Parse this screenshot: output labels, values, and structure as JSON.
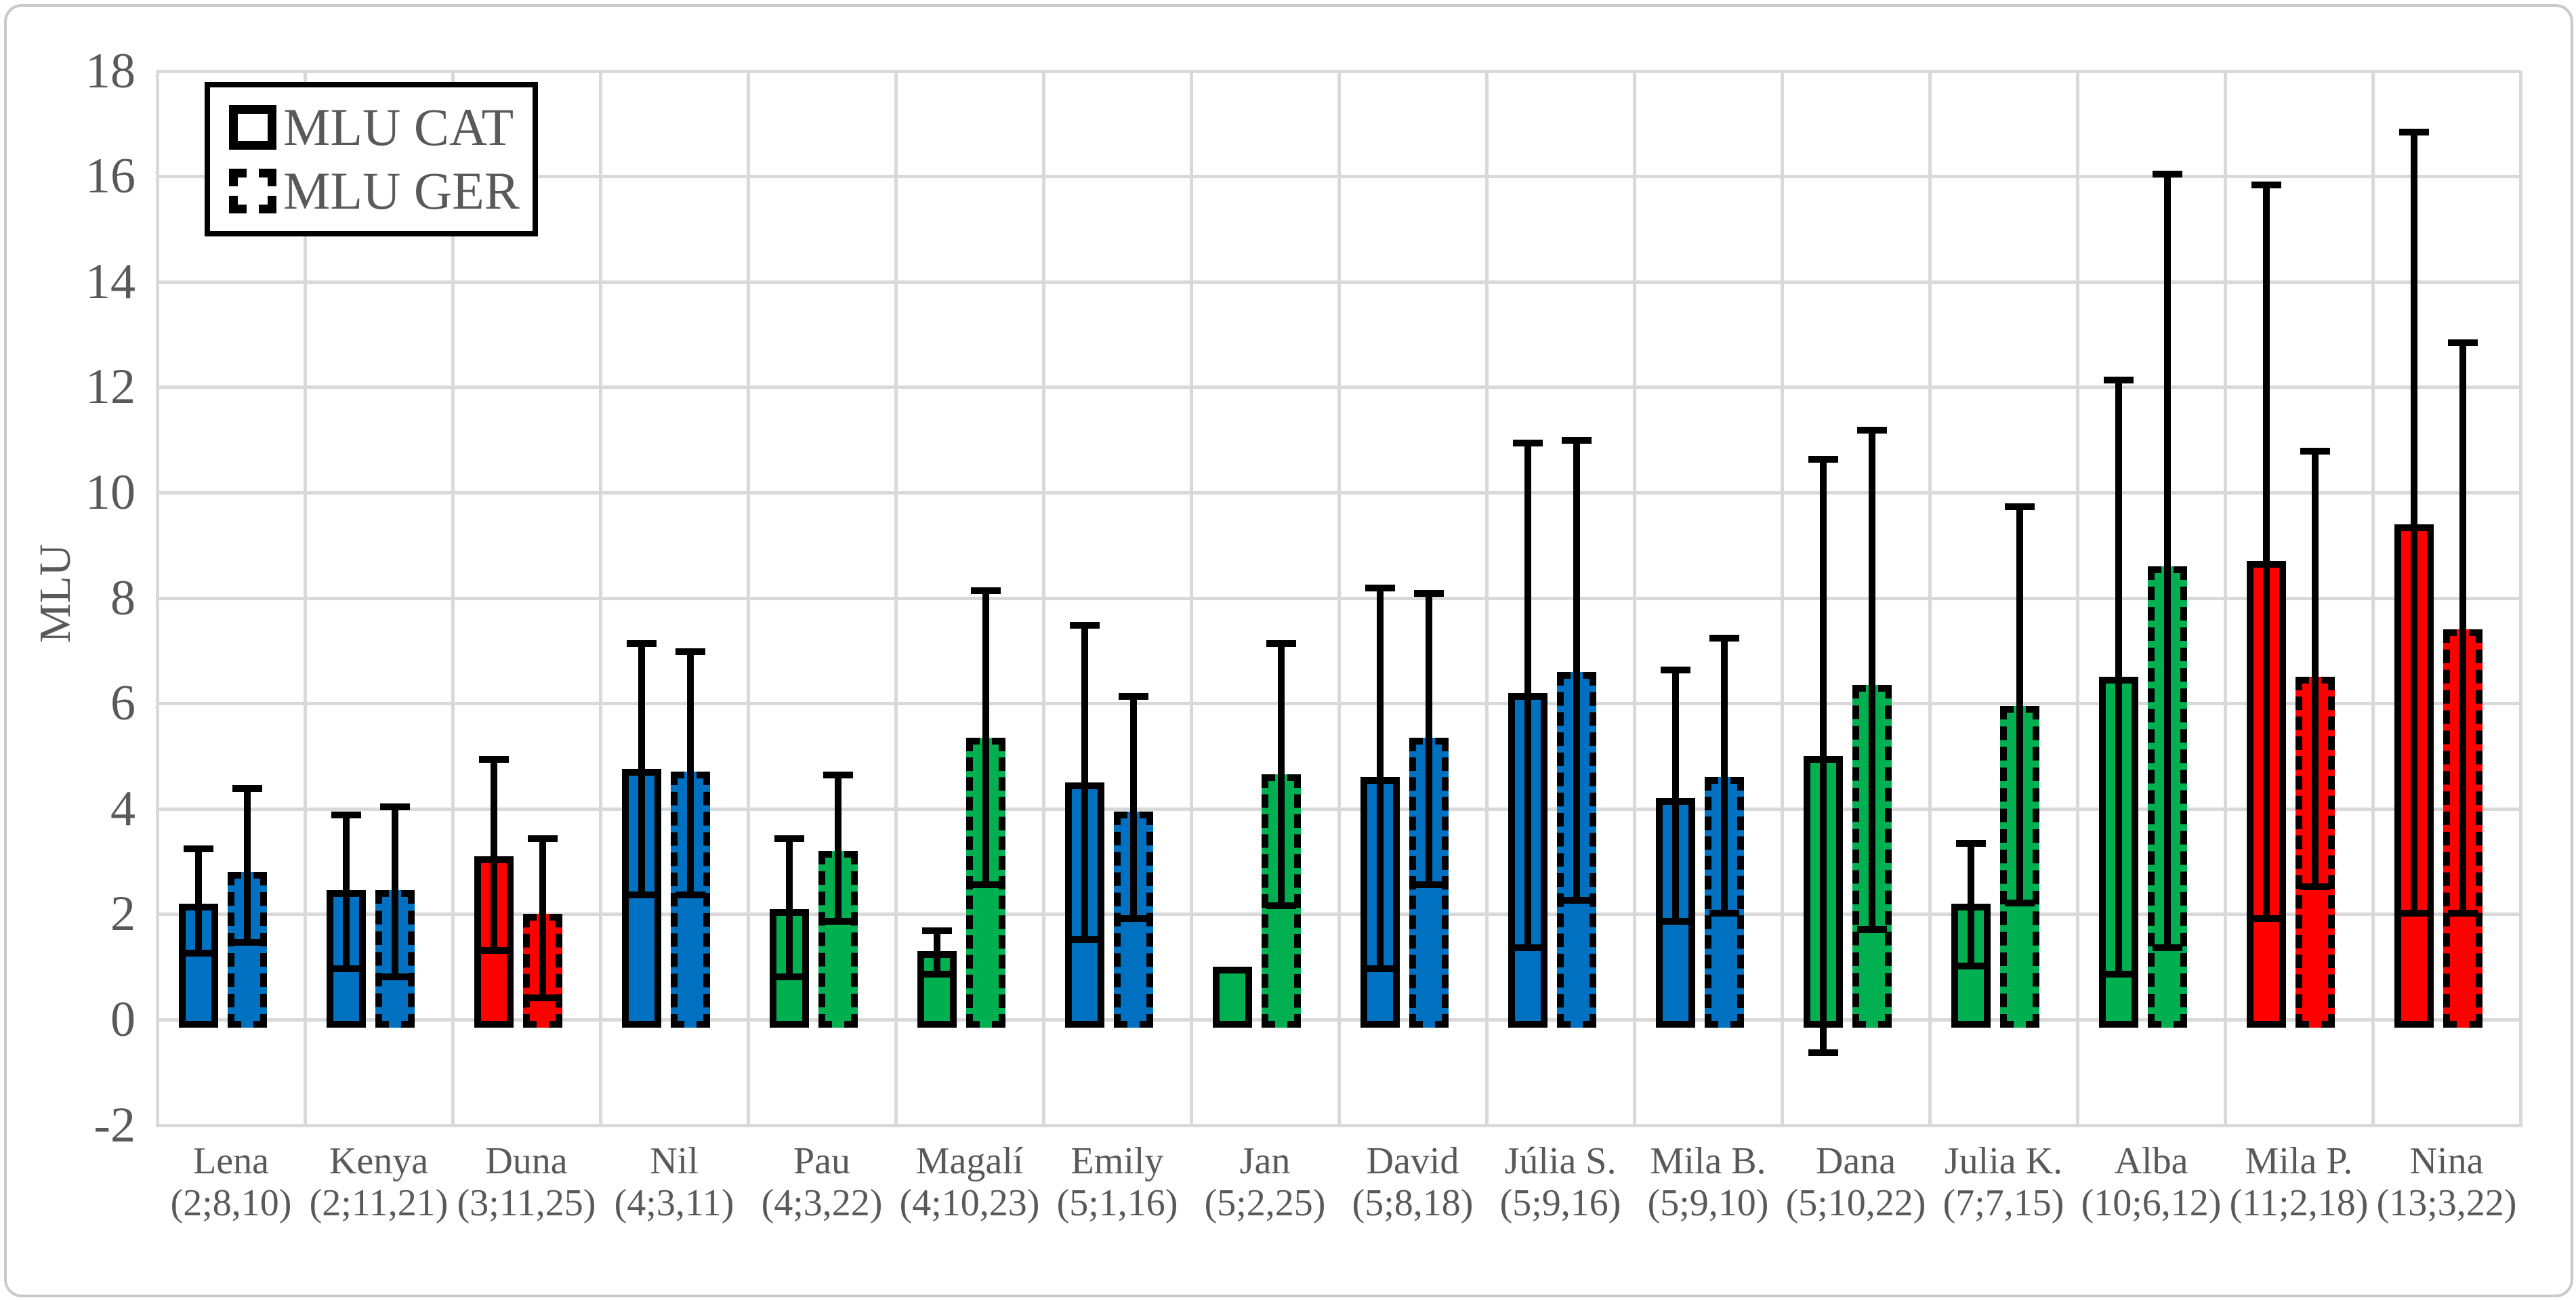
{
  "chart_data": {
    "type": "bar",
    "title": "",
    "xlabel": "",
    "ylabel": "MLU",
    "ylim": [
      -2,
      18
    ],
    "yticks": [
      -2,
      0,
      2,
      4,
      6,
      8,
      10,
      12,
      14,
      16,
      18
    ],
    "grid": "on",
    "legend_position": "top-left",
    "legend": {
      "items": [
        {
          "label": "MLU CAT",
          "border_style": "solid"
        },
        {
          "label": "MLU GER",
          "border_style": "dashed"
        }
      ]
    },
    "series": [
      "MLU CAT",
      "MLU GER"
    ],
    "colors": {
      "blue": "#0070C0",
      "red": "#FF0000",
      "green": "#00B050",
      "bar_border": "#000000",
      "grid_line": "#D9D9D9",
      "axis_text": "#595959",
      "frame": "#C9C9C9"
    },
    "children": [
      {
        "name": "Lena",
        "info": "(2;8,10)",
        "color": "blue",
        "cat": {
          "value": 2.2,
          "whisker_top": 3.3,
          "whisker_bottom": 1.2
        },
        "ger": {
          "value": 2.8,
          "whisker_top": 4.45,
          "whisker_bottom": 1.4
        }
      },
      {
        "name": "Kenya",
        "info": "(2;11,21)",
        "color": "blue",
        "cat": {
          "value": 2.45,
          "whisker_top": 3.95,
          "whisker_bottom": 0.9
        },
        "ger": {
          "value": 2.45,
          "whisker_top": 4.1,
          "whisker_bottom": 0.75
        }
      },
      {
        "name": "Duna",
        "info": "(3;11,25)",
        "color": "red",
        "cat": {
          "value": 3.1,
          "whisker_top": 5.0,
          "whisker_bottom": 1.25
        },
        "ger": {
          "value": 2.0,
          "whisker_top": 3.5,
          "whisker_bottom": 0.35
        }
      },
      {
        "name": "Nil",
        "info": "(4;3,11)",
        "color": "blue",
        "cat": {
          "value": 4.75,
          "whisker_top": 7.2,
          "whisker_bottom": 2.3
        },
        "ger": {
          "value": 4.7,
          "whisker_top": 7.05,
          "whisker_bottom": 2.3
        }
      },
      {
        "name": "Pau",
        "info": "(4;3,22)",
        "color": "green",
        "cat": {
          "value": 2.1,
          "whisker_top": 3.5,
          "whisker_bottom": 0.75
        },
        "ger": {
          "value": 3.2,
          "whisker_top": 4.7,
          "whisker_bottom": 1.8
        }
      },
      {
        "name": "Magalí",
        "info": "(4;10,23)",
        "color": "green",
        "cat": {
          "value": 1.3,
          "whisker_top": 1.75,
          "whisker_bottom": 0.8
        },
        "ger": {
          "value": 5.35,
          "whisker_top": 8.2,
          "whisker_bottom": 2.5
        }
      },
      {
        "name": "Emily",
        "info": "(5;1,16)",
        "color": "blue",
        "cat": {
          "value": 4.5,
          "whisker_top": 7.55,
          "whisker_bottom": 1.45
        },
        "ger": {
          "value": 3.95,
          "whisker_top": 6.2,
          "whisker_bottom": 1.85
        }
      },
      {
        "name": "Jan",
        "info": "(5;2,25)",
        "color": "green",
        "cat": {
          "value": 1.0,
          "whisker_top": null,
          "whisker_bottom": null
        },
        "ger": {
          "value": 4.65,
          "whisker_top": 7.2,
          "whisker_bottom": 2.1
        }
      },
      {
        "name": "David",
        "info": "(5;8,18)",
        "color": "blue",
        "cat": {
          "value": 4.6,
          "whisker_top": 8.25,
          "whisker_bottom": 0.9
        },
        "ger": {
          "value": 5.35,
          "whisker_top": 8.15,
          "whisker_bottom": 2.5
        }
      },
      {
        "name": "Júlia S.",
        "info": "(5;9,16)",
        "color": "blue",
        "cat": {
          "value": 6.2,
          "whisker_top": 11.0,
          "whisker_bottom": 1.3
        },
        "ger": {
          "value": 6.6,
          "whisker_top": 11.05,
          "whisker_bottom": 2.2
        }
      },
      {
        "name": "Mila B.",
        "info": "(5;9,10)",
        "color": "blue",
        "cat": {
          "value": 4.2,
          "whisker_top": 6.7,
          "whisker_bottom": 1.8
        },
        "ger": {
          "value": 4.6,
          "whisker_top": 7.3,
          "whisker_bottom": 1.95
        }
      },
      {
        "name": "Dana",
        "info": "(5;10,22)",
        "color": "green",
        "cat": {
          "value": 5.0,
          "whisker_top": 10.7,
          "whisker_bottom": -0.7
        },
        "ger": {
          "value": 6.35,
          "whisker_top": 11.25,
          "whisker_bottom": 1.65
        }
      },
      {
        "name": "Julia K.",
        "info": "(7;7,15)",
        "color": "green",
        "cat": {
          "value": 2.2,
          "whisker_top": 3.4,
          "whisker_bottom": 0.95
        },
        "ger": {
          "value": 5.95,
          "whisker_top": 9.8,
          "whisker_bottom": 2.15
        }
      },
      {
        "name": "Alba",
        "info": "(10;6,12)",
        "color": "green",
        "cat": {
          "value": 6.5,
          "whisker_top": 12.2,
          "whisker_bottom": 0.8
        },
        "ger": {
          "value": 8.6,
          "whisker_top": 16.1,
          "whisker_bottom": 1.3
        }
      },
      {
        "name": "Mila P.",
        "info": "(11;2,18)",
        "color": "red",
        "cat": {
          "value": 8.7,
          "whisker_top": 15.9,
          "whisker_bottom": 1.85
        },
        "ger": {
          "value": 6.5,
          "whisker_top": 10.85,
          "whisker_bottom": 2.45
        }
      },
      {
        "name": "Nina",
        "info": "(13;3,22)",
        "color": "red",
        "cat": {
          "value": 9.4,
          "whisker_top": 16.9,
          "whisker_bottom": 1.95
        },
        "ger": {
          "value": 7.4,
          "whisker_top": 12.9,
          "whisker_bottom": 1.95
        }
      }
    ]
  }
}
